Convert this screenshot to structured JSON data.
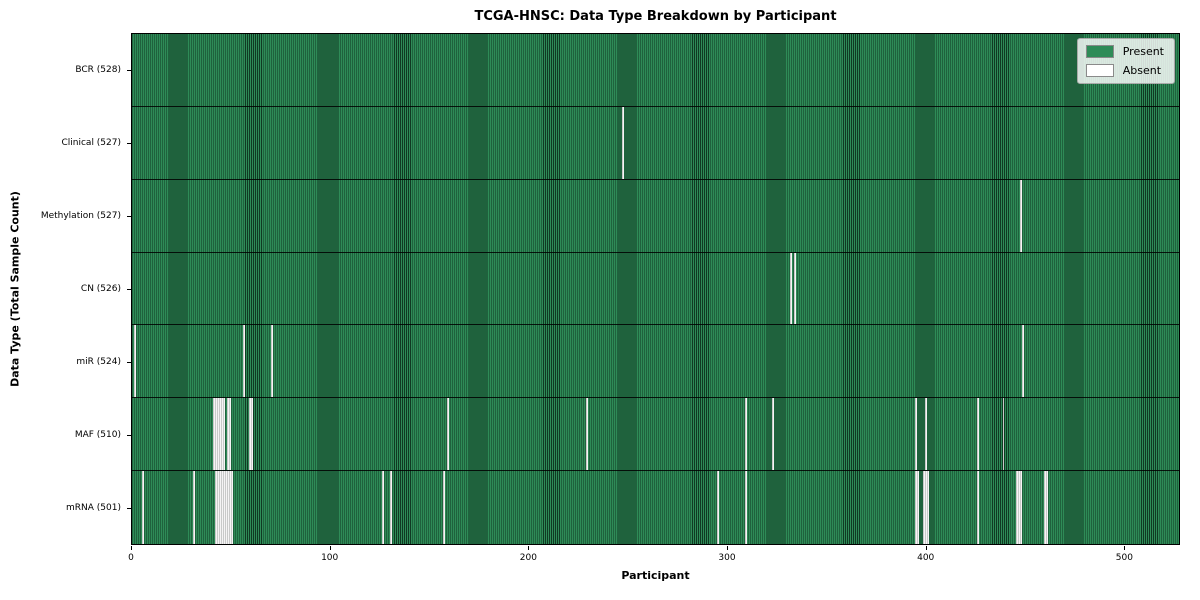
{
  "chart_data": {
    "type": "heatmap",
    "title": "TCGA-HNSC: Data Type Breakdown by Participant",
    "xlabel": "Participant",
    "ylabel": "Data Type (Total Sample Count)",
    "x_ticks": [
      0,
      100,
      200,
      300,
      400,
      500
    ],
    "total_participants": 528,
    "grid": false,
    "legend_position": "upper right",
    "colors": {
      "present": "#2e8b57",
      "absent": "#ffffff",
      "bar_edge": "#0a2214"
    },
    "legend": [
      {
        "label": "Present",
        "color": "#2e8b57"
      },
      {
        "label": "Absent",
        "color": "#ffffff"
      }
    ],
    "rows": [
      {
        "data_type": "BCR",
        "label": "BCR (528)",
        "present_count": 528,
        "absent_participants": []
      },
      {
        "data_type": "Clinical",
        "label": "Clinical (527)",
        "present_count": 527,
        "absent_participants": [
          247
        ]
      },
      {
        "data_type": "Methylation",
        "label": "Methylation (527)",
        "present_count": 527,
        "absent_participants": [
          448
        ]
      },
      {
        "data_type": "CN",
        "label": "CN (526)",
        "present_count": 526,
        "absent_participants": [
          332,
          334
        ]
      },
      {
        "data_type": "miR",
        "label": "miR (524)",
        "present_count": 524,
        "absent_participants": [
          1,
          56,
          70,
          449
        ]
      },
      {
        "data_type": "MAF",
        "label": "MAF (510)",
        "present_count": 510,
        "absent_participants": [
          41,
          42,
          43,
          44,
          45,
          46,
          48,
          49,
          59,
          60,
          159,
          229,
          309,
          323,
          395,
          400,
          426,
          439
        ]
      },
      {
        "data_type": "mRNA",
        "label": "mRNA (501)",
        "present_count": 501,
        "absent_participants": [
          5,
          31,
          42,
          43,
          44,
          45,
          46,
          47,
          48,
          49,
          50,
          126,
          130,
          157,
          295,
          309,
          395,
          396,
          399,
          400,
          401,
          426,
          446,
          447,
          448,
          460,
          461
        ]
      }
    ]
  }
}
